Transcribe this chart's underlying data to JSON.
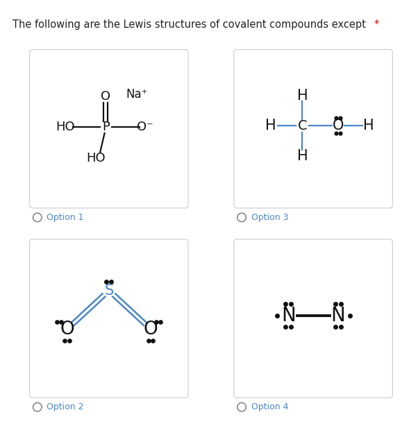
{
  "title": "The following are the Lewis structures of covalent compounds except",
  "title_color": "#222222",
  "asterisk_color": "#cc0000",
  "background": "#ffffff",
  "panel_border": "#cccccc",
  "option_labels": [
    "Option 1",
    "Option 2",
    "Option 3",
    "Option 4"
  ],
  "option_label_color": "#4a86c8",
  "bond_color_black": "#111111",
  "bond_color_blue": "#4a86c8",
  "radio_color": "#888888"
}
